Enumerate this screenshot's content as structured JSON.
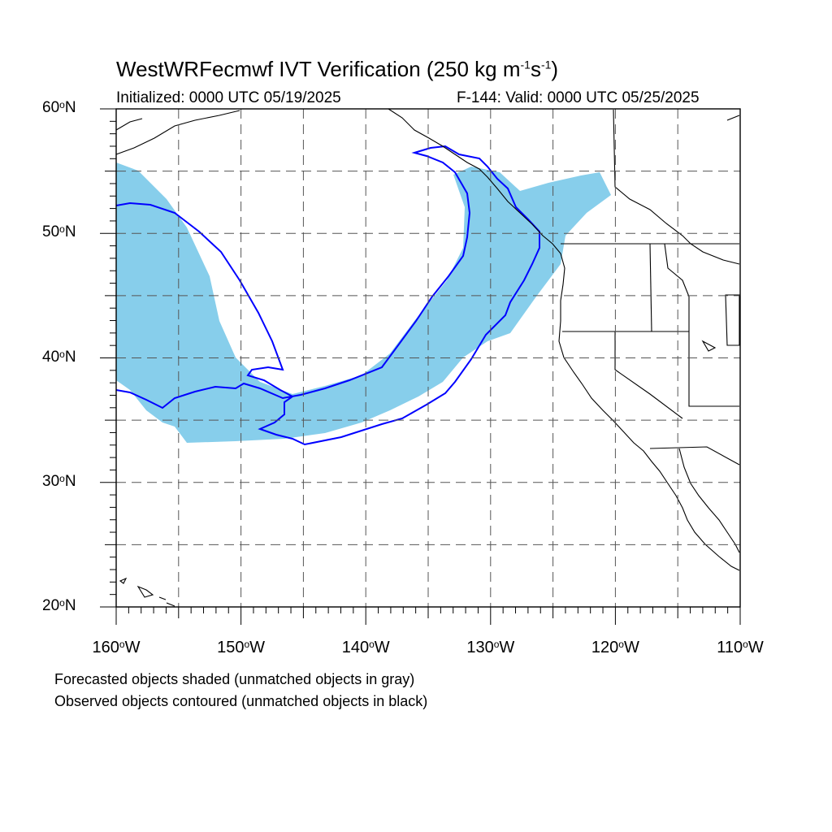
{
  "title": {
    "prefix": "WestWRFecmwf IVT Verification (250 kg m",
    "exp1": "-1",
    "middle": "s",
    "exp2": "-1",
    "suffix": ")"
  },
  "initialized": "Initialized: 0000 UTC 05/19/2025",
  "valid": "F-144: Valid: 0000 UTC 05/25/2025",
  "lat_labels": [
    {
      "num": "60",
      "hemi": "N"
    },
    {
      "num": "50",
      "hemi": "N"
    },
    {
      "num": "40",
      "hemi": "N"
    },
    {
      "num": "30",
      "hemi": "N"
    },
    {
      "num": "20",
      "hemi": "N"
    }
  ],
  "lon_labels": [
    {
      "num": "160",
      "hemi": "W"
    },
    {
      "num": "150",
      "hemi": "W"
    },
    {
      "num": "140",
      "hemi": "W"
    },
    {
      "num": "130",
      "hemi": "W"
    },
    {
      "num": "120",
      "hemi": "W"
    },
    {
      "num": "110",
      "hemi": "W"
    }
  ],
  "degree_symbol": "o",
  "notes": {
    "forecast": "Forecasted objects shaded (unmatched objects in gray)",
    "observed": "Observed objects contoured (unmatched objects in black)"
  },
  "colors": {
    "forecast_fill": "#87ceeb",
    "observed_contour": "#0000ff",
    "coast": "#000000",
    "grid": "#555555"
  }
}
